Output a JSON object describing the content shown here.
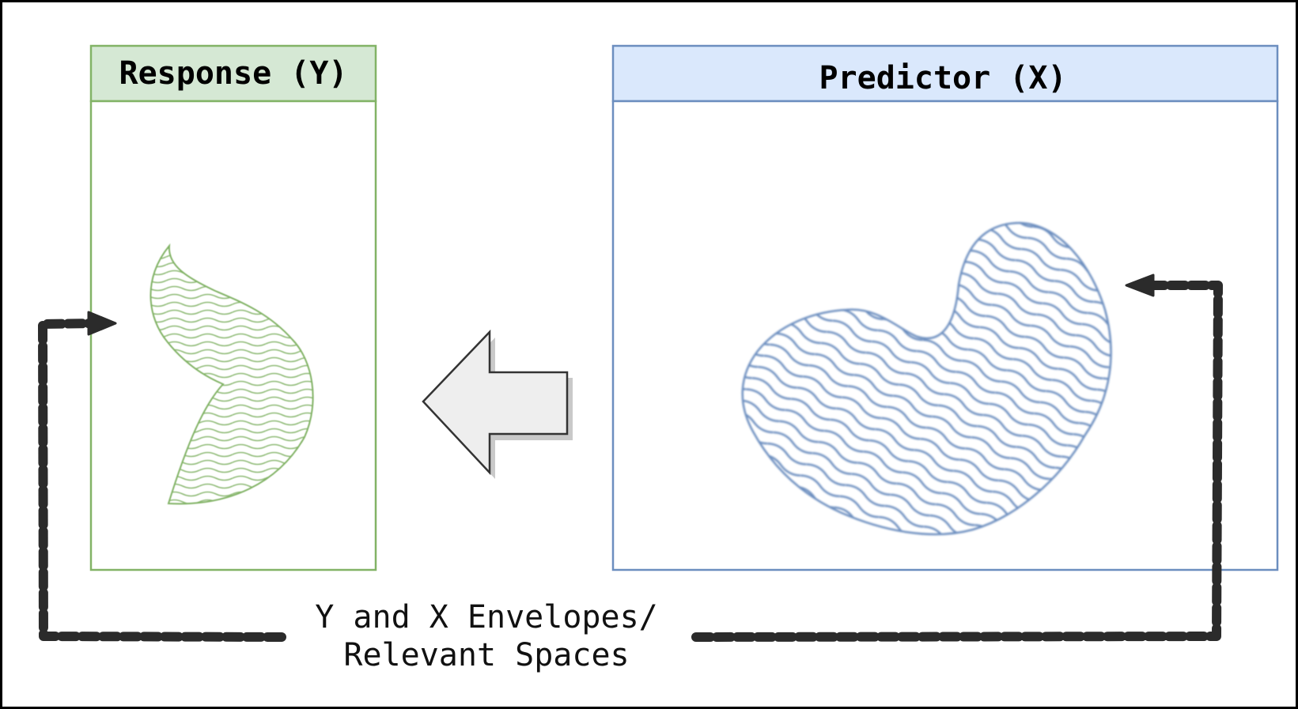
{
  "response_panel": {
    "title": "Response (Y)",
    "header_fill": "#d5e8d4",
    "border_color": "#82b366",
    "shape_color": "#82b366"
  },
  "predictor_panel": {
    "title": "Predictor (X)",
    "header_fill": "#dae8fc",
    "border_color": "#6c8ebf",
    "shape_color": "#6c8ebf"
  },
  "caption": {
    "line1": "Y and X Envelopes/",
    "line2": "Relevant Spaces"
  },
  "arrow": {
    "fill": "#eeeeee",
    "stroke": "#333333",
    "shadow": "#bbbbbb"
  },
  "connector_color": "#2b2b2b"
}
